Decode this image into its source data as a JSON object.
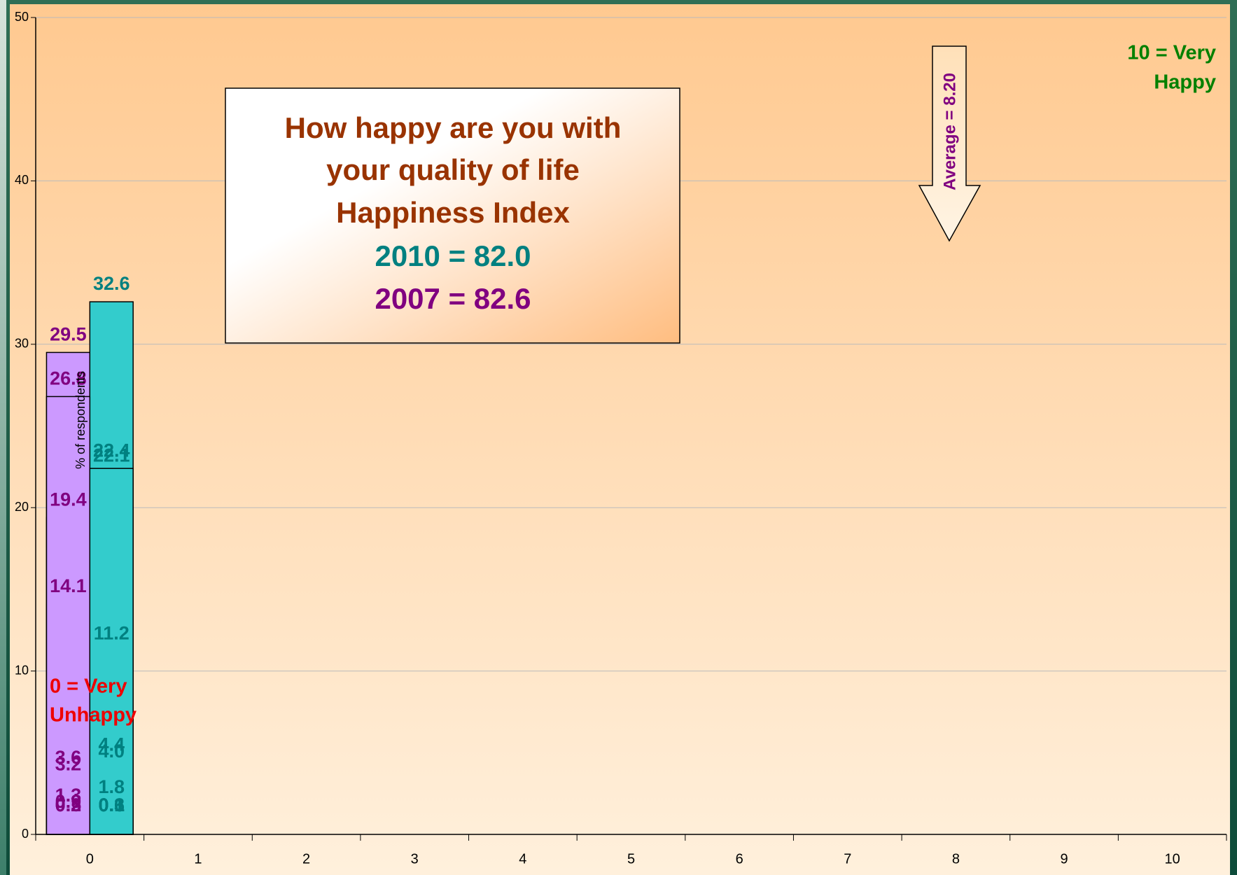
{
  "chart_data": {
    "type": "bar",
    "y_axis_label": "% of respondents",
    "categories": [
      "0",
      "1",
      "2",
      "3",
      "4",
      "5",
      "6",
      "7",
      "8",
      "9",
      "10"
    ],
    "series": [
      {
        "color": "#cc99ff",
        "label_color": "#800080",
        "values": [
          0.2,
          0.2,
          0.5,
          0.9,
          1.3,
          3.2,
          3.6,
          14.1,
          29.5,
          19.4,
          26.8
        ],
        "value_labels": [
          "0.2",
          "0.2",
          "0.5",
          "0.9",
          "1.3",
          "3.2",
          "3.6",
          "14.1",
          "29.5",
          "19.4",
          "26.8"
        ]
      },
      {
        "color": "#33cccc",
        "label_color": "#008080",
        "values": [
          0.3,
          0.1,
          0.6,
          0.1,
          1.8,
          4.0,
          4.4,
          11.2,
          32.6,
          22.1,
          22.4
        ],
        "value_labels": [
          "0.3",
          "0.1",
          "0.6",
          "0.1",
          "1.8",
          "4.0",
          "4.4",
          "11.2",
          "32.6",
          "22.1",
          "22.4"
        ]
      }
    ],
    "ylim": [
      0,
      50
    ],
    "yticks": [
      0,
      10,
      20,
      30,
      40,
      50
    ],
    "grid": true,
    "annotations": {
      "box_lines": [
        "How happy are you with",
        "your quality of life",
        "Happiness Index",
        "2010 = 82.0",
        "2007 = 82.6"
      ],
      "low_label": [
        "0 = Very",
        "Unhappy"
      ],
      "high_label": [
        "10 = Very",
        "Happy"
      ],
      "average": "Average = 8.20"
    }
  }
}
